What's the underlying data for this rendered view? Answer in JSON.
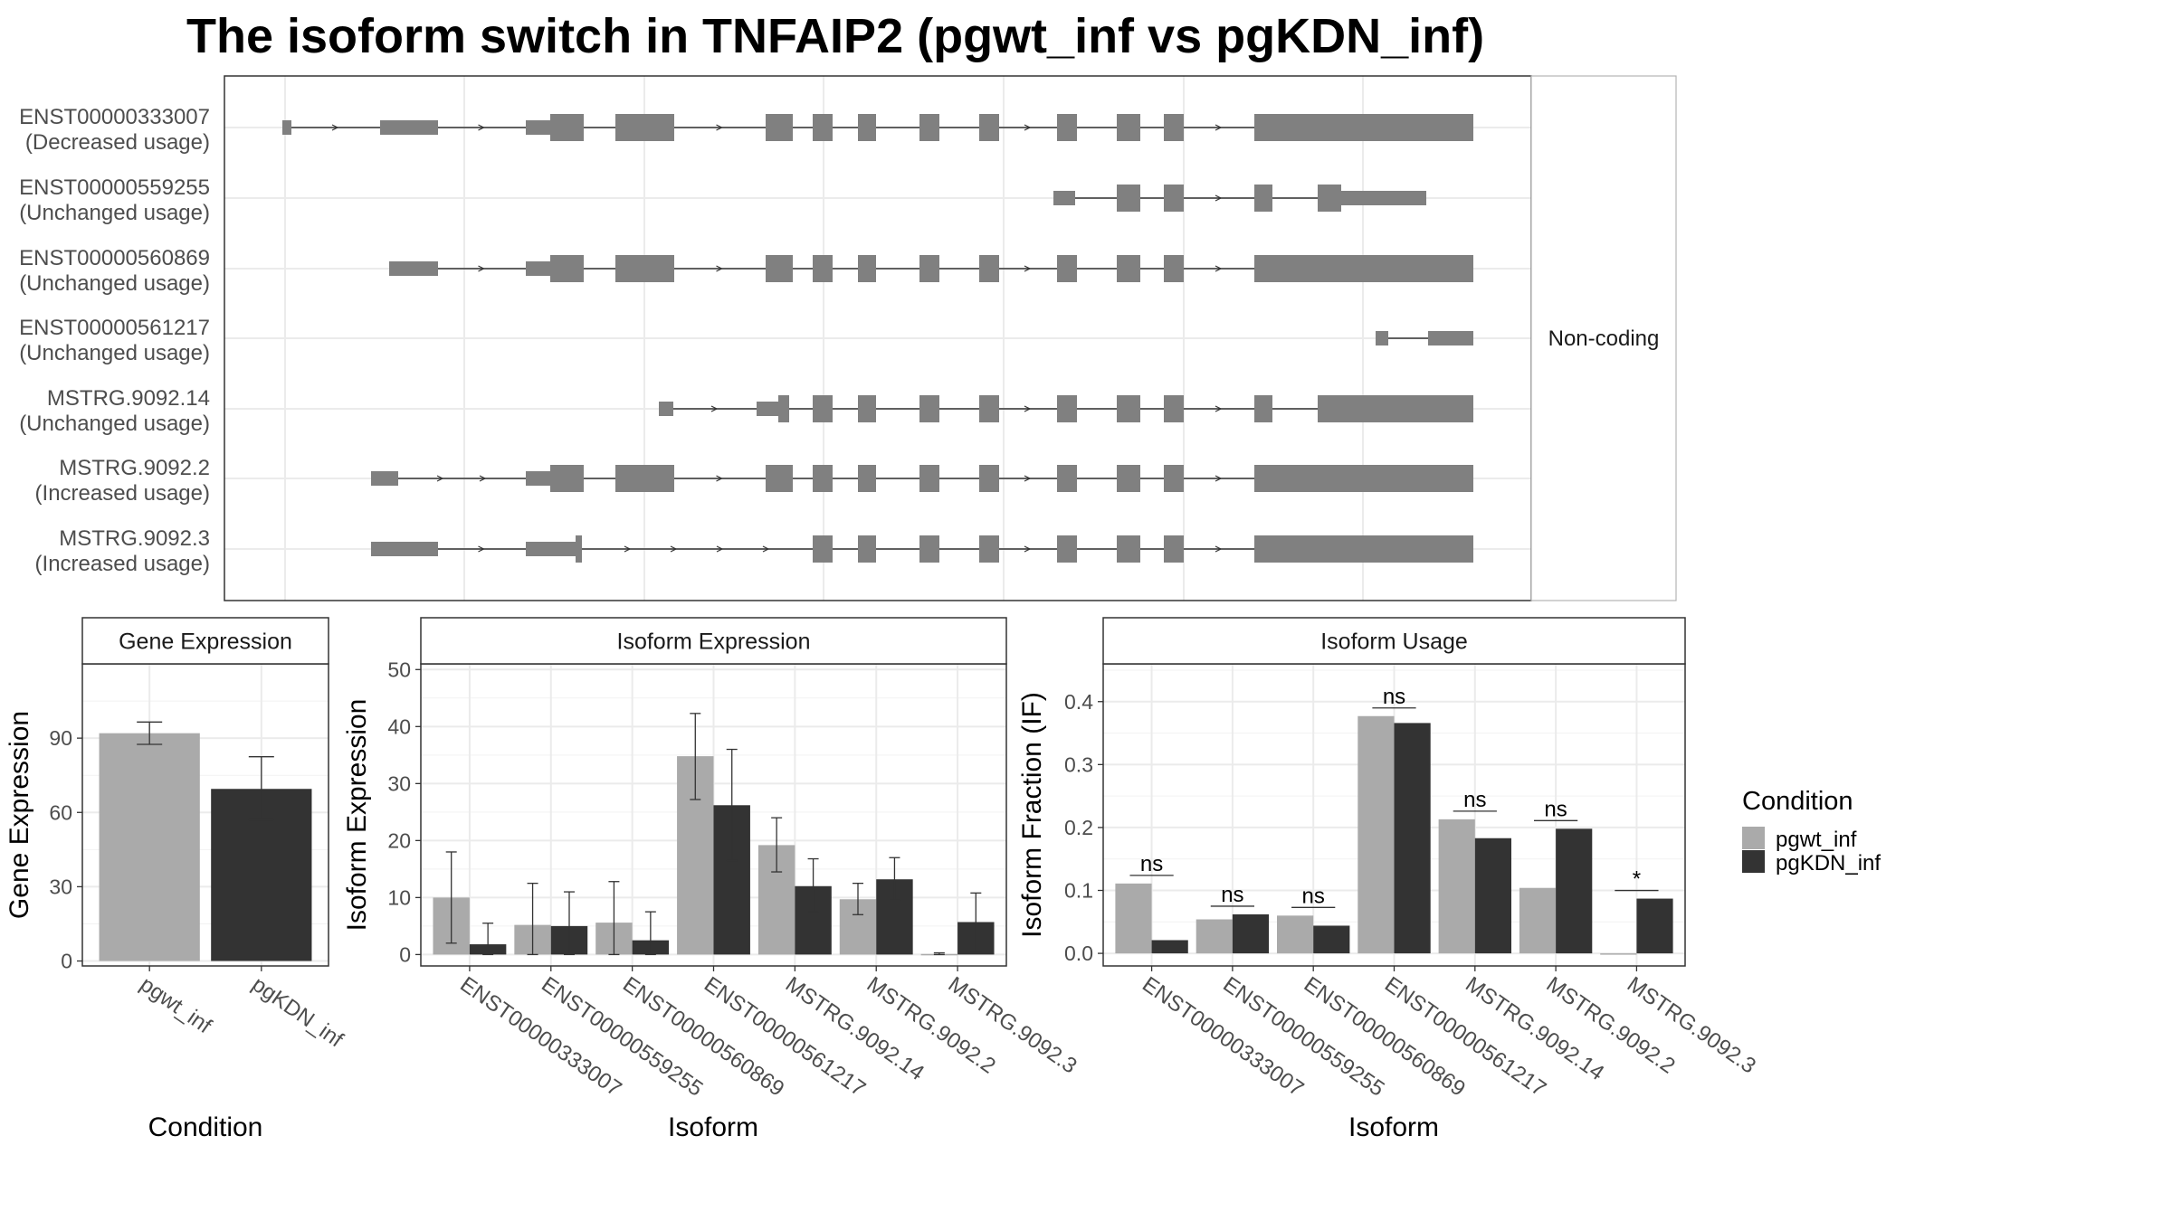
{
  "title": "The isoform switch in TNFAIP2 (pgwt_inf vs pgKDN_inf)",
  "colors": {
    "pgwt_inf": "#aaaaaa",
    "pgKDN_inf": "#333333",
    "exon": "#808080",
    "grid": "#ebebeb"
  },
  "structure": {
    "facet_label": "Non-coding",
    "transcripts": [
      {
        "id": "ENST00000333007",
        "usage": "(Decreased usage)"
      },
      {
        "id": "ENST00000559255",
        "usage": "(Unchanged usage)"
      },
      {
        "id": "ENST00000560869",
        "usage": "(Unchanged usage)"
      },
      {
        "id": "ENST00000561217",
        "usage": "(Unchanged usage)"
      },
      {
        "id": "MSTRG.9092.14",
        "usage": "(Unchanged usage)"
      },
      {
        "id": "MSTRG.9092.2",
        "usage": "(Increased usage)"
      },
      {
        "id": "MSTRG.9092.3",
        "usage": "(Increased usage)"
      }
    ]
  },
  "legend": {
    "title": "Condition",
    "items": [
      {
        "label": "pgwt_inf",
        "color": "#aaaaaa"
      },
      {
        "label": "pgKDN_inf",
        "color": "#333333"
      }
    ]
  },
  "chart_data": [
    {
      "type": "bar",
      "title": "Gene Expression",
      "xlabel": "Condition",
      "ylabel": "Gene Expression",
      "categories": [
        "pgwt_inf",
        "pgKDN_inf"
      ],
      "values": [
        92,
        69.5
      ],
      "error": [
        [
          87.5,
          96.5
        ],
        [
          57,
          82.5
        ]
      ],
      "ylim": [
        -2,
        120
      ],
      "yticks": [
        0,
        30,
        60,
        90
      ]
    },
    {
      "type": "bar",
      "title": "Isoform Expression",
      "xlabel": "Isoform",
      "ylabel": "Isoform Expression",
      "categories": [
        "ENST00000333007",
        "ENST00000559255",
        "ENST00000560869",
        "ENST00000561217",
        "MSTRG.9092.14",
        "MSTRG.9092.2",
        "MSTRG.9092.3"
      ],
      "series": [
        {
          "name": "pgwt_inf",
          "values": [
            10,
            5.2,
            5.6,
            34.8,
            19.2,
            9.7,
            0.1
          ],
          "error": [
            [
              2,
              18
            ],
            [
              0,
              12.5
            ],
            [
              0,
              12.8
            ],
            [
              27.2,
              42.3
            ],
            [
              14.5,
              24
            ],
            [
              7,
              12.5
            ],
            [
              0,
              0.3
            ]
          ]
        },
        {
          "name": "pgKDN_inf",
          "values": [
            1.8,
            5,
            2.5,
            26.2,
            12,
            13.2,
            5.7
          ],
          "error": [
            [
              0,
              5.5
            ],
            [
              0,
              11
            ],
            [
              0,
              7.5
            ],
            [
              16.5,
              36
            ],
            [
              7.5,
              16.8
            ],
            [
              9.5,
              17
            ],
            [
              0.5,
              10.8
            ]
          ]
        }
      ],
      "ylim": [
        -2,
        51
      ],
      "yticks": [
        0,
        10,
        20,
        30,
        40,
        50
      ]
    },
    {
      "type": "bar",
      "title": "Isoform Usage",
      "xlabel": "Isoform",
      "ylabel": "Isoform Fraction (IF)",
      "categories": [
        "ENST00000333007",
        "ENST00000559255",
        "ENST00000560869",
        "ENST00000561217",
        "MSTRG.9092.14",
        "MSTRG.9092.2",
        "MSTRG.9092.3"
      ],
      "series": [
        {
          "name": "pgwt_inf",
          "values": [
            0.111,
            0.054,
            0.06,
            0.377,
            0.213,
            0.104,
            0.0
          ]
        },
        {
          "name": "pgKDN_inf",
          "values": [
            0.021,
            0.062,
            0.044,
            0.366,
            0.183,
            0.198,
            0.087
          ]
        }
      ],
      "significance": [
        "ns",
        "ns",
        "ns",
        "ns",
        "ns",
        "ns",
        "*"
      ],
      "ylim": [
        -0.02,
        0.46
      ],
      "yticks": [
        0.0,
        0.1,
        0.2,
        0.3,
        0.4
      ],
      "ytick_labels": [
        "0.0",
        "0.1",
        "0.2",
        "0.3",
        "0.4"
      ]
    }
  ]
}
